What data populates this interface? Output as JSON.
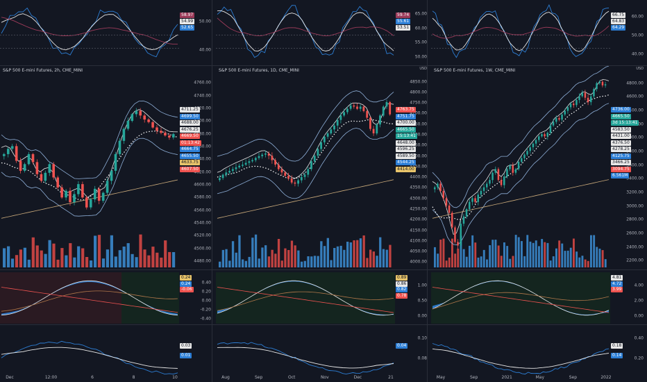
{
  "colors": {
    "bg": "#131722",
    "up": "#26a69a",
    "down": "#ef5350",
    "vol_up": "#2962ff",
    "vol_blue": "#3d8fd6",
    "vol_red": "#e04a47",
    "white": "#e8e8e8",
    "maroon": "#9c3b5a",
    "blue": "#2d7fd6",
    "orange": "#b2784a",
    "yellow": "#e8c46a"
  },
  "panels": [
    {
      "title": "S&P 500 E-mini Futures, 2h, CME_MINI",
      "currency": "",
      "rsi_ticks": [
        "50.00",
        "40.00"
      ],
      "rsi_badges": [
        {
          "text": "58.97",
          "bg": "#9c3b5a",
          "fg": "#ffffff"
        },
        {
          "text": "54.99",
          "bg": "#e8e8e8",
          "fg": "#131722"
        },
        {
          "text": "52.65",
          "bg": "#2d7fd6",
          "fg": "#ffffff"
        }
      ],
      "price_ticks": [
        "4760.00",
        "4740.00",
        "4720.00",
        "4700.00",
        "4680.00",
        "4660.00",
        "4640.00",
        "4620.00",
        "4600.00",
        "4580.00",
        "4560.00",
        "4540.00",
        "4520.00",
        "4500.00",
        "4480.00"
      ],
      "price_badges": [
        {
          "text": "4711.25",
          "bg": "#e8e8e8",
          "fg": "#131722"
        },
        {
          "text": "4699.50",
          "bg": "#2d7fd6",
          "fg": "#ffffff"
        },
        {
          "text": "4688.00",
          "bg": "#e8e8e8",
          "fg": "#131722"
        },
        {
          "text": "4676.25",
          "bg": "#e8e8e8",
          "fg": "#131722"
        },
        {
          "text": "4669.50",
          "bg": "#ef5350",
          "fg": "#ffffff"
        },
        {
          "text": "01:13:42",
          "bg": "#ef5350",
          "fg": "#ffffff"
        },
        {
          "text": "4664.75",
          "bg": "#2d7fd6",
          "fg": "#ffffff"
        },
        {
          "text": "4655.50",
          "bg": "#2d7fd6",
          "fg": "#ffffff"
        },
        {
          "text": "4633.75",
          "bg": "#e8c46a",
          "fg": "#131722"
        },
        {
          "text": "4607.50",
          "bg": "#ef5350",
          "fg": "#ffffff"
        }
      ],
      "macd_ticks": [
        "0.40",
        "0.20",
        "0.00",
        "-0.20",
        "-0.40"
      ],
      "macd_badges": [
        {
          "text": "0.24",
          "bg": "#e8c46a",
          "fg": "#131722"
        },
        {
          "text": "0.24",
          "bg": "#2d7fd6",
          "fg": "#ffffff"
        },
        {
          "text": "-0.06",
          "bg": "#ef5350",
          "fg": "#ffffff"
        }
      ],
      "osc_badges": [
        {
          "text": "0.03",
          "bg": "#e8e8e8",
          "fg": "#131722"
        },
        {
          "text": "0.01",
          "bg": "#2d7fd6",
          "fg": "#ffffff"
        }
      ],
      "xlabels": [
        "Dec",
        "12:00",
        "6",
        "8",
        "10"
      ]
    },
    {
      "title": "S&P 500 E-mini Futures, 1D, CME_MINI",
      "currency": "USD",
      "rsi_ticks": [
        "65.00",
        "60.00",
        "55.00",
        "50.00"
      ],
      "rsi_badges": [
        {
          "text": "59.74",
          "bg": "#9c3b5a",
          "fg": "#ffffff"
        },
        {
          "text": "55.61",
          "bg": "#2d7fd6",
          "fg": "#ffffff"
        },
        {
          "text": "53.51",
          "bg": "#e8e8e8",
          "fg": "#131722"
        }
      ],
      "price_ticks": [
        "4850.00",
        "4800.00",
        "4750.00",
        "4700.00",
        "4650.00",
        "4600.00",
        "4550.00",
        "4500.00",
        "4450.00",
        "4400.00",
        "4350.00",
        "4300.00",
        "4250.00",
        "4200.00",
        "4150.00",
        "4100.00",
        "4050.00",
        "4000.00"
      ],
      "price_badges": [
        {
          "text": "4763.75",
          "bg": "#ef5350",
          "fg": "#ffffff"
        },
        {
          "text": "4751.75",
          "bg": "#2d7fd6",
          "fg": "#ffffff"
        },
        {
          "text": "4700.00",
          "bg": "#e8e8e8",
          "fg": "#131722"
        },
        {
          "text": "4665.50",
          "bg": "#26a69a",
          "fg": "#ffffff"
        },
        {
          "text": "15:13:41",
          "bg": "#26a69a",
          "fg": "#ffffff"
        },
        {
          "text": "4648.00",
          "bg": "#e8e8e8",
          "fg": "#131722"
        },
        {
          "text": "4596.25",
          "bg": "#e8e8e8",
          "fg": "#131722"
        },
        {
          "text": "4589.50",
          "bg": "#e8e8e8",
          "fg": "#131722"
        },
        {
          "text": "4544.25",
          "bg": "#2d7fd6",
          "fg": "#ffffff"
        },
        {
          "text": "4414.00",
          "bg": "#e8c46a",
          "fg": "#131722"
        }
      ],
      "macd_ticks": [
        "1.00",
        "0.50",
        "0.00"
      ],
      "macd_badges": [
        {
          "text": "0.89",
          "bg": "#e8c46a",
          "fg": "#131722"
        },
        {
          "text": "0.86",
          "bg": "#e8e8e8",
          "fg": "#131722"
        },
        {
          "text": "0.82",
          "bg": "#2d7fd6",
          "fg": "#ffffff"
        },
        {
          "text": "0.78",
          "bg": "#ef5350",
          "fg": "#ffffff"
        }
      ],
      "osc_ticks": [
        "0.10",
        "0.08"
      ],
      "osc_badges": [
        {
          "text": "0.04",
          "bg": "#2d7fd6",
          "fg": "#ffffff"
        }
      ],
      "xlabels": [
        "Aug",
        "Sep",
        "Oct",
        "Nov",
        "Dec",
        "21"
      ]
    },
    {
      "title": "S&P 500 E-mini Futures, 1W, CME_MINI",
      "currency": "USD",
      "rsi_ticks": [
        "60.00",
        "50.00",
        "40.00"
      ],
      "rsi_badges": [
        {
          "text": "66.75",
          "bg": "#e8e8e8",
          "fg": "#131722"
        },
        {
          "text": "64.83",
          "bg": "#e8e8e8",
          "fg": "#131722"
        },
        {
          "text": "64.29",
          "bg": "#2d7fd6",
          "fg": "#ffffff"
        }
      ],
      "price_ticks": [
        "4800.00",
        "4600.00",
        "4400.00",
        "4200.00",
        "4000.00",
        "3800.00",
        "3600.00",
        "3400.00",
        "3200.00",
        "3000.00",
        "2800.00",
        "2600.00",
        "2400.00",
        "2200.00"
      ],
      "price_badges": [
        {
          "text": "4736.00",
          "bg": "#2d7fd6",
          "fg": "#ffffff"
        },
        {
          "text": "4665.50",
          "bg": "#26a69a",
          "fg": "#ffffff"
        },
        {
          "text": "3d 15:13:41",
          "bg": "#26a69a",
          "fg": "#ffffff"
        },
        {
          "text": "4583.50",
          "bg": "#e8e8e8",
          "fg": "#131722"
        },
        {
          "text": "4431.00",
          "bg": "#e8e8e8",
          "fg": "#131722"
        },
        {
          "text": "4376.50",
          "bg": "#e8e8e8",
          "fg": "#131722"
        },
        {
          "text": "4278.25",
          "bg": "#e8e8e8",
          "fg": "#131722"
        },
        {
          "text": "4125.75",
          "bg": "#2d7fd6",
          "fg": "#ffffff"
        },
        {
          "text": "3466.25",
          "bg": "#e8e8e8",
          "fg": "#131722"
        },
        {
          "text": "3094.75",
          "bg": "#ef5350",
          "fg": "#ffffff"
        },
        {
          "text": "6.561M",
          "bg": "#2d7fd6",
          "fg": "#ffffff"
        }
      ],
      "macd_ticks": [
        "4.00",
        "2.00",
        "0.00"
      ],
      "macd_badges": [
        {
          "text": "4.81",
          "bg": "#e8e8e8",
          "fg": "#131722"
        },
        {
          "text": "4.72",
          "bg": "#2d7fd6",
          "fg": "#ffffff"
        },
        {
          "text": "3.99",
          "bg": "#ef5350",
          "fg": "#ffffff"
        }
      ],
      "osc_ticks": [
        "0.40",
        "0.20"
      ],
      "osc_badges": [
        {
          "text": "0.18",
          "bg": "#e8e8e8",
          "fg": "#131722"
        },
        {
          "text": "0.14",
          "bg": "#2d7fd6",
          "fg": "#ffffff"
        }
      ],
      "xlabels": [
        "May",
        "Sep",
        "2021",
        "May",
        "Sep",
        "2022"
      ]
    }
  ],
  "chart_data": [
    {
      "type": "candlestick",
      "title": "S&P 500 E-mini Futures, 2h, CME_MINI",
      "interval": "2h",
      "ylim": [
        4470,
        4765
      ],
      "close": [
        4640,
        4648,
        4652,
        4630,
        4615,
        4625,
        4640,
        4628,
        4610,
        4600,
        4612,
        4625,
        4605,
        4590,
        4575,
        4585,
        4568,
        4580,
        4595,
        4575,
        4560,
        4572,
        4588,
        4570,
        4582,
        4600,
        4615,
        4640,
        4660,
        4678,
        4690,
        4700,
        4705,
        4698,
        4692,
        4688,
        4680,
        4675,
        4672,
        4668,
        4665,
        4670
      ]
    },
    {
      "type": "candlestick",
      "title": "S&P 500 E-mini Futures, 1D, CME_MINI",
      "interval": "1D",
      "ylim": [
        3980,
        4860
      ],
      "close": [
        4380,
        4395,
        4405,
        4412,
        4420,
        4428,
        4435,
        4440,
        4448,
        4455,
        4460,
        4470,
        4478,
        4485,
        4490,
        4480,
        4460,
        4440,
        4420,
        4405,
        4390,
        4378,
        4360,
        4355,
        4370,
        4385,
        4395,
        4420,
        4455,
        4480,
        4510,
        4540,
        4565,
        4580,
        4598,
        4615,
        4640,
        4660,
        4675,
        4690,
        4705,
        4700,
        4690,
        4700,
        4680,
        4650,
        4600,
        4580,
        4620,
        4660,
        4700,
        4720,
        4665
      ]
    },
    {
      "type": "candlestick",
      "title": "S&P 500 E-mini Futures, 1W, CME_MINI",
      "interval": "1W",
      "ylim": [
        2150,
        4850
      ],
      "close": [
        3250,
        3300,
        3200,
        3100,
        3000,
        2900,
        2700,
        2500,
        2450,
        2750,
        2850,
        2950,
        3050,
        3100,
        3050,
        3150,
        3200,
        3250,
        3300,
        3350,
        3450,
        3500,
        3350,
        3280,
        3400,
        3500,
        3550,
        3450,
        3500,
        3600,
        3650,
        3700,
        3750,
        3800,
        3850,
        3900,
        3950,
        3980,
        3950,
        4000,
        4100,
        4150,
        4200,
        4180,
        4250,
        4300,
        4350,
        4400,
        4380,
        4450,
        4500,
        4550,
        4480,
        4420,
        4500,
        4600,
        4680,
        4700,
        4650,
        4665
      ]
    }
  ]
}
